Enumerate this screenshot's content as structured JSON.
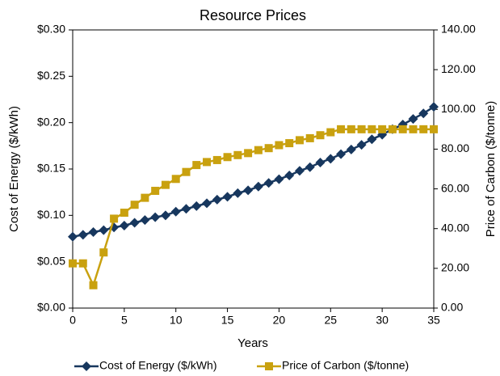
{
  "chart_data": {
    "type": "line",
    "title": "Resource Prices",
    "x_label": "Years",
    "y_label": "Cost of Energy ($/kWh)",
    "y2_label": "Price of Carbon ($/tonne)",
    "x": [
      0,
      1,
      2,
      3,
      4,
      5,
      6,
      7,
      8,
      9,
      10,
      11,
      12,
      13,
      14,
      15,
      16,
      17,
      18,
      19,
      20,
      21,
      22,
      23,
      24,
      25,
      26,
      27,
      28,
      29,
      30,
      31,
      32,
      33,
      34,
      35
    ],
    "xlim": [
      0,
      35
    ],
    "xticks": [
      0,
      5,
      10,
      15,
      20,
      25,
      30,
      35
    ],
    "ylim": [
      0,
      0.3
    ],
    "yticks": [
      {
        "value": 0,
        "label": "$0.00"
      },
      {
        "value": 0.05,
        "label": "$0.05"
      },
      {
        "value": 0.1,
        "label": "$0.10"
      },
      {
        "value": 0.15,
        "label": "$0.15"
      },
      {
        "value": 0.2,
        "label": "$0.20"
      },
      {
        "value": 0.25,
        "label": "$0.25"
      },
      {
        "value": 0.3,
        "label": "$0.30"
      }
    ],
    "y2lim": [
      0,
      140
    ],
    "y2ticks": [
      {
        "value": 0,
        "label": "0.00"
      },
      {
        "value": 20,
        "label": "20.00"
      },
      {
        "value": 40,
        "label": "40.00"
      },
      {
        "value": 60,
        "label": "60.00"
      },
      {
        "value": 80,
        "label": "80.00"
      },
      {
        "value": 100,
        "label": "100.00"
      },
      {
        "value": 120,
        "label": "120.00"
      },
      {
        "value": 140,
        "label": "140.00"
      }
    ],
    "legend": "bottom",
    "series": [
      {
        "name": "Cost of Energy ($/kWh)",
        "color": "#17375e",
        "marker": "diamond",
        "values": [
          0.077,
          0.079,
          0.082,
          0.084,
          0.087,
          0.089,
          0.092,
          0.095,
          0.098,
          0.1,
          0.104,
          0.107,
          0.11,
          0.113,
          0.117,
          0.12,
          0.124,
          0.127,
          0.131,
          0.135,
          0.139,
          0.143,
          0.148,
          0.152,
          0.157,
          0.161,
          0.166,
          0.171,
          0.176,
          0.182,
          0.187,
          0.193,
          0.198,
          0.204,
          0.21,
          0.217
        ]
      },
      {
        "name": "Price of Carbon ($/tonne)",
        "color": "#c9a10f",
        "marker": "square",
        "axis": "y2",
        "values": [
          22.5,
          22.5,
          11.5,
          28,
          45,
          48,
          52,
          55.5,
          59,
          62,
          65,
          68.5,
          72,
          73.5,
          74.5,
          76,
          77,
          78,
          79.5,
          80.5,
          82,
          83,
          84.5,
          85.5,
          87,
          88.5,
          90,
          90,
          90,
          90,
          90,
          90,
          90,
          90,
          90,
          90
        ]
      }
    ]
  }
}
